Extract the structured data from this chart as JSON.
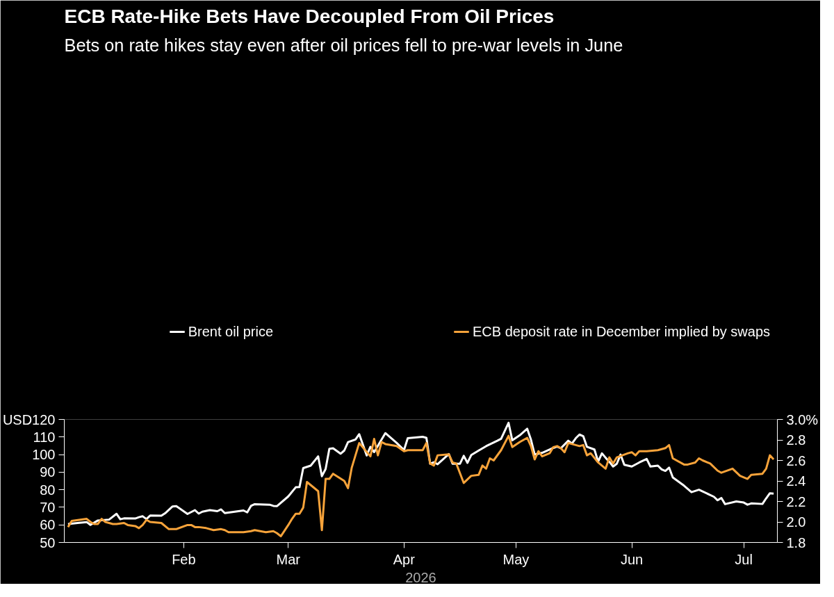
{
  "chart_data": {
    "type": "line",
    "title": "ECB Rate-Hike Bets Have Decoupled From Oil Prices",
    "subtitle": "Bets on rate hikes stay even after oil prices fell to pre-war levels in June",
    "xlabel": "2026",
    "xlim": [
      "2025-12-31",
      "2026-07-10"
    ],
    "xticks": [
      {
        "value": "2026-02-01",
        "label": "Feb"
      },
      {
        "value": "2026-03-01",
        "label": "Mar"
      },
      {
        "value": "2026-04-01",
        "label": "Apr"
      },
      {
        "value": "2026-05-01",
        "label": "May"
      },
      {
        "value": "2026-06-01",
        "label": "Jun"
      },
      {
        "value": "2026-07-01",
        "label": "Jul"
      }
    ],
    "ylim": [
      50,
      120
    ],
    "yticks": [
      50,
      60,
      70,
      80,
      90,
      100,
      110,
      {
        "value": 120,
        "label": "USD120"
      }
    ],
    "y2lim": [
      1.8,
      3.0
    ],
    "y2ticks": [
      {
        "value": 1.8,
        "label": "1.8"
      },
      {
        "value": 2.0,
        "label": "2.0"
      },
      {
        "value": 2.2,
        "label": "2.2"
      },
      {
        "value": 2.4,
        "label": "2.4"
      },
      {
        "value": 2.6,
        "label": "2.6"
      },
      {
        "value": 2.8,
        "label": "2.8"
      },
      {
        "value": 3.0,
        "label": "3.0%"
      }
    ],
    "legend": "top",
    "line_style": "solid",
    "series": [
      {
        "name": "Brent oil price",
        "color": "#ffffff",
        "x": [
          "2026-01-01",
          "2026-01-04",
          "2026-01-06",
          "2026-01-07",
          "2026-01-09",
          "2026-01-12",
          "2026-01-14",
          "2026-01-15",
          "2026-01-16",
          "2026-01-19",
          "2026-01-20",
          "2026-01-21",
          "2026-01-22",
          "2026-01-23",
          "2026-01-26",
          "2026-01-27",
          "2026-01-29",
          "2026-01-30",
          "2026-02-02",
          "2026-02-04",
          "2026-02-05",
          "2026-02-06",
          "2026-02-08",
          "2026-02-10",
          "2026-02-11",
          "2026-02-12",
          "2026-02-14",
          "2026-02-17",
          "2026-02-18",
          "2026-02-19",
          "2026-02-20",
          "2026-02-24",
          "2026-02-25",
          "2026-02-26",
          "2026-03-01",
          "2026-03-03",
          "2026-03-04",
          "2026-03-05",
          "2026-03-07",
          "2026-03-09",
          "2026-03-10",
          "2026-03-11",
          "2026-03-12",
          "2026-03-13",
          "2026-03-15",
          "2026-03-16",
          "2026-03-17",
          "2026-03-19",
          "2026-03-20",
          "2026-03-22",
          "2026-03-23",
          "2026-03-24",
          "2026-03-27",
          "2026-03-30",
          "2026-04-01",
          "2026-04-02",
          "2026-04-06",
          "2026-04-07",
          "2026-04-08",
          "2026-04-09",
          "2026-04-10",
          "2026-04-13",
          "2026-04-14",
          "2026-04-16",
          "2026-04-17",
          "2026-04-18",
          "2026-04-19",
          "2026-04-21",
          "2026-04-23",
          "2026-04-26",
          "2026-04-27",
          "2026-04-29",
          "2026-04-30",
          "2026-05-02",
          "2026-05-04",
          "2026-05-05",
          "2026-05-06",
          "2026-05-08",
          "2026-05-11",
          "2026-05-12",
          "2026-05-13",
          "2026-05-15",
          "2026-05-16",
          "2026-05-17",
          "2026-05-18",
          "2026-05-19",
          "2026-05-20",
          "2026-05-22",
          "2026-05-23",
          "2026-05-24",
          "2026-05-25",
          "2026-05-26",
          "2026-05-27",
          "2026-05-28",
          "2026-05-29",
          "2026-05-30",
          "2026-06-01",
          "2026-06-03",
          "2026-06-05",
          "2026-06-06",
          "2026-06-08",
          "2026-06-09",
          "2026-06-10",
          "2026-06-11",
          "2026-06-12",
          "2026-06-15",
          "2026-06-17",
          "2026-06-19",
          "2026-06-23",
          "2026-06-24",
          "2026-06-25",
          "2026-06-26",
          "2026-06-29",
          "2026-07-01",
          "2026-07-02",
          "2026-07-03",
          "2026-07-06",
          "2026-07-07",
          "2026-07-08",
          "2026-07-09"
        ],
        "values": [
          60.5,
          61.2,
          61.6,
          60,
          62.5,
          63,
          66.3,
          63.2,
          63.7,
          63.6,
          64.4,
          64.9,
          63.3,
          65.3,
          65.2,
          66.6,
          70.5,
          70.7,
          66.2,
          68.4,
          66.4,
          67.5,
          68.4,
          67.8,
          68.8,
          66.7,
          67.3,
          68.2,
          67.1,
          70.8,
          71.8,
          71.5,
          70.8,
          70.7,
          76.2,
          81.4,
          81.5,
          92.3,
          93.7,
          99,
          87.7,
          91.8,
          103.3,
          103.6,
          100.5,
          102.3,
          107.1,
          108.6,
          111.6,
          99.5,
          104.4,
          101.4,
          112.2,
          106.7,
          102.6,
          109.3,
          110.1,
          109.5,
          94.8,
          95.6,
          94.5,
          100.3,
          94.8,
          94.8,
          99.3,
          95.3,
          99.7,
          102.3,
          104.8,
          107.9,
          109,
          118.1,
          108.1,
          111,
          114.7,
          108.5,
          100,
          101,
          103.8,
          104.5,
          103.6,
          107.9,
          106.3,
          109.3,
          111.4,
          110.5,
          104.4,
          102.9,
          96,
          100.7,
          98.2,
          95.9,
          93.2,
          94.8,
          100,
          94.2,
          93.2,
          95.5,
          97.5,
          93.2,
          93.7,
          91.6,
          90.7,
          92.6,
          87,
          82.3,
          78.6,
          80,
          76,
          74,
          75.3,
          71.8,
          73.3,
          72.7,
          71.5,
          72.2,
          71.9,
          75.1,
          78,
          77.8
        ]
      },
      {
        "name": "ECB deposit rate in December implied by swaps",
        "color": "#f7a33a",
        "axis": "y2",
        "x": [
          "2026-01-01",
          "2026-01-02",
          "2026-01-04",
          "2026-01-06",
          "2026-01-07",
          "2026-01-08",
          "2026-01-09",
          "2026-01-10",
          "2026-01-11",
          "2026-01-13",
          "2026-01-14",
          "2026-01-16",
          "2026-01-17",
          "2026-01-19",
          "2026-01-20",
          "2026-01-21",
          "2026-01-22",
          "2026-01-23",
          "2026-01-26",
          "2026-01-28",
          "2026-01-30",
          "2026-02-02",
          "2026-02-03",
          "2026-02-04",
          "2026-02-05",
          "2026-02-07",
          "2026-02-09",
          "2026-02-11",
          "2026-02-12",
          "2026-02-13",
          "2026-02-16",
          "2026-02-17",
          "2026-02-19",
          "2026-02-20",
          "2026-02-23",
          "2026-02-25",
          "2026-02-26",
          "2026-02-27",
          "2026-03-01",
          "2026-03-02",
          "2026-03-03",
          "2026-03-04",
          "2026-03-05",
          "2026-03-06",
          "2026-03-09",
          "2026-03-10",
          "2026-03-11",
          "2026-03-12",
          "2026-03-13",
          "2026-03-16",
          "2026-03-17",
          "2026-03-18",
          "2026-03-20",
          "2026-03-23",
          "2026-03-24",
          "2026-03-25",
          "2026-03-26",
          "2026-03-27",
          "2026-03-30",
          "2026-04-01",
          "2026-04-02",
          "2026-04-06",
          "2026-04-07",
          "2026-04-08",
          "2026-04-09",
          "2026-04-10",
          "2026-04-13",
          "2026-04-14",
          "2026-04-15",
          "2026-04-17",
          "2026-04-19",
          "2026-04-21",
          "2026-04-22",
          "2026-04-23",
          "2026-04-24",
          "2026-04-25",
          "2026-04-27",
          "2026-04-29",
          "2026-04-30",
          "2026-05-02",
          "2026-05-04",
          "2026-05-05",
          "2026-05-06",
          "2026-05-07",
          "2026-05-08",
          "2026-05-10",
          "2026-05-11",
          "2026-05-12",
          "2026-05-13",
          "2026-05-14",
          "2026-05-15",
          "2026-05-18",
          "2026-05-19",
          "2026-05-20",
          "2026-05-21",
          "2026-05-23",
          "2026-05-25",
          "2026-05-26",
          "2026-05-27",
          "2026-05-28",
          "2026-05-31",
          "2026-06-01",
          "2026-06-02",
          "2026-06-03",
          "2026-06-05",
          "2026-06-08",
          "2026-06-09",
          "2026-06-10",
          "2026-06-11",
          "2026-06-12",
          "2026-06-15",
          "2026-06-16",
          "2026-06-18",
          "2026-06-19",
          "2026-06-20",
          "2026-06-22",
          "2026-06-24",
          "2026-06-25",
          "2026-06-28",
          "2026-06-30",
          "2026-07-02",
          "2026-07-03",
          "2026-07-06",
          "2026-07-07",
          "2026-07-08",
          "2026-07-09"
        ],
        "values": [
          1.95,
          2.01,
          2.02,
          2.03,
          2.0,
          1.98,
          1.98,
          2.03,
          2.0,
          1.98,
          1.98,
          1.99,
          1.97,
          1.96,
          1.94,
          1.97,
          2.02,
          2.0,
          1.99,
          1.93,
          1.93,
          1.97,
          1.97,
          1.95,
          1.95,
          1.94,
          1.92,
          1.93,
          1.92,
          1.9,
          1.9,
          1.9,
          1.91,
          1.92,
          1.9,
          1.91,
          1.89,
          1.86,
          1.97,
          2.03,
          2.08,
          2.08,
          2.14,
          2.39,
          2.3,
          1.92,
          2.42,
          2.42,
          2.47,
          2.4,
          2.33,
          2.53,
          2.77,
          2.64,
          2.81,
          2.65,
          2.78,
          2.76,
          2.74,
          2.69,
          2.7,
          2.7,
          2.77,
          2.57,
          2.55,
          2.65,
          2.66,
          2.58,
          2.57,
          2.38,
          2.45,
          2.46,
          2.55,
          2.52,
          2.62,
          2.6,
          2.7,
          2.84,
          2.73,
          2.78,
          2.82,
          2.74,
          2.61,
          2.69,
          2.64,
          2.67,
          2.73,
          2.74,
          2.72,
          2.68,
          2.77,
          2.74,
          2.75,
          2.65,
          2.67,
          2.58,
          2.52,
          2.63,
          2.57,
          2.63,
          2.67,
          2.68,
          2.65,
          2.69,
          2.69,
          2.7,
          2.71,
          2.72,
          2.75,
          2.62,
          2.56,
          2.56,
          2.58,
          2.62,
          2.6,
          2.57,
          2.5,
          2.48,
          2.52,
          2.45,
          2.42,
          2.46,
          2.47,
          2.52,
          2.65,
          2.61
        ]
      }
    ]
  }
}
